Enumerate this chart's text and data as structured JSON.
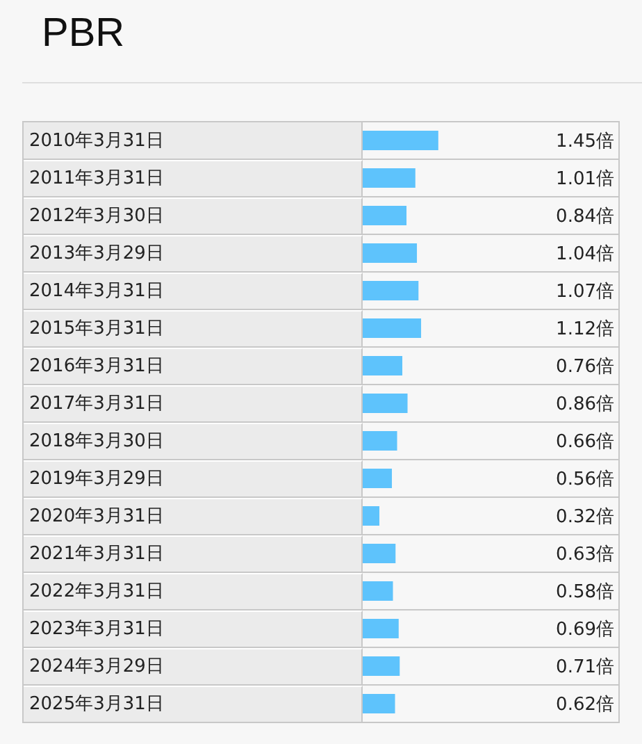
{
  "chart_data": {
    "type": "bar",
    "orientation": "horizontal",
    "title": "PBR",
    "categories": [
      "2010年3月31日",
      "2011年3月31日",
      "2012年3月30日",
      "2013年3月29日",
      "2014年3月31日",
      "2015年3月31日",
      "2016年3月31日",
      "2017年3月31日",
      "2018年3月30日",
      "2019年3月29日",
      "2020年3月31日",
      "2021年3月31日",
      "2022年3月31日",
      "2023年3月31日",
      "2024年3月29日",
      "2025年3月31日"
    ],
    "values": [
      1.45,
      1.01,
      0.84,
      1.04,
      1.07,
      1.12,
      0.76,
      0.86,
      0.66,
      0.56,
      0.32,
      0.63,
      0.58,
      0.69,
      0.71,
      0.62
    ],
    "value_labels": [
      "1.45倍",
      "1.01倍",
      "0.84倍",
      "1.04倍",
      "1.07倍",
      "1.12倍",
      "0.76倍",
      "0.86倍",
      "0.66倍",
      "0.56倍",
      "0.32倍",
      "0.63倍",
      "0.58倍",
      "0.69倍",
      "0.71倍",
      "0.62倍"
    ],
    "color": "#5ec3fc"
  }
}
